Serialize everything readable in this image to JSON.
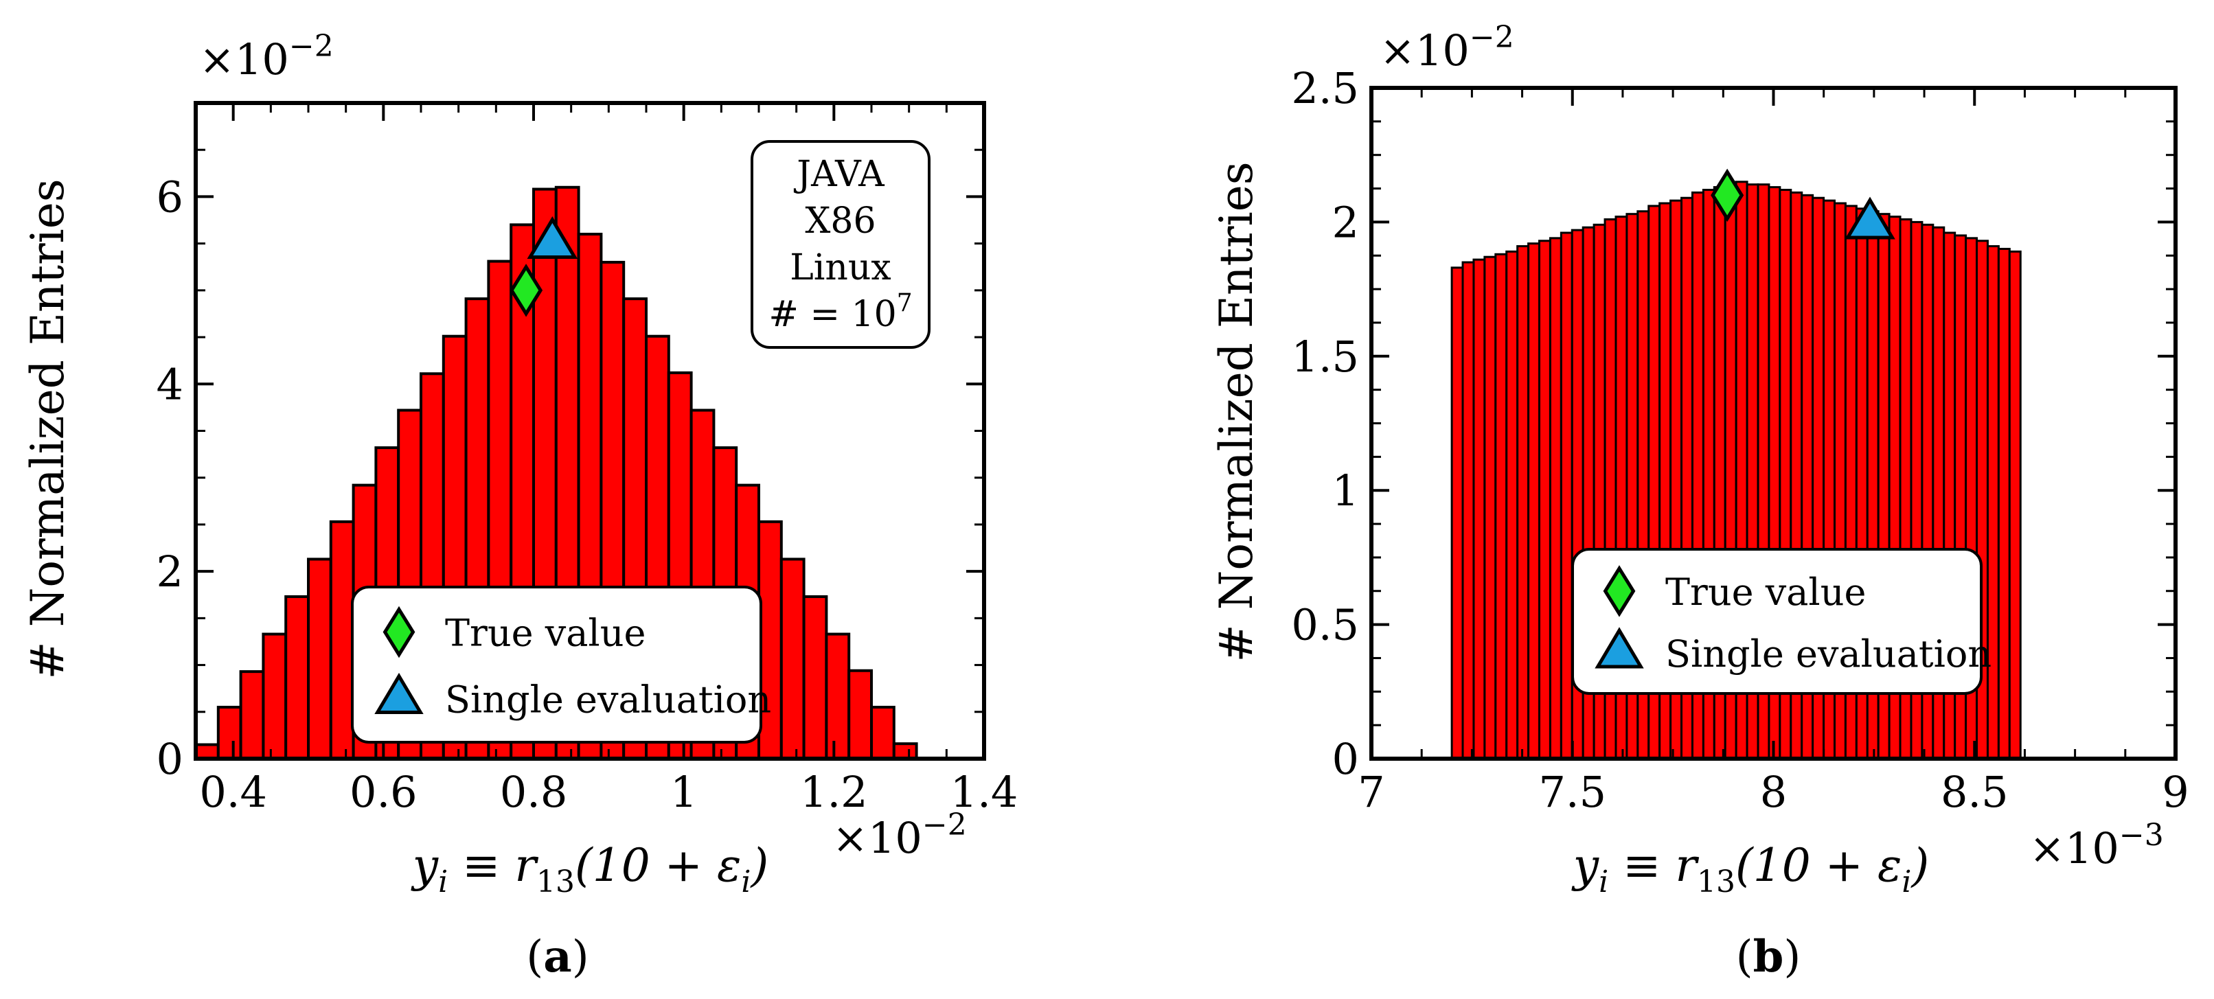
{
  "chart_data": [
    {
      "id": "a",
      "type": "bar",
      "panel_label_open": "(",
      "panel_label_letter": "a",
      "panel_label_close": ")",
      "ylabel": "# Normalized Entries",
      "xlabel": "y_i ≡ r_13(10 + ε_i)",
      "xlabel_parts": {
        "y": "y",
        "y_sub": "i",
        "mid": " ≡ r",
        "r_sub": "13",
        "open": "(10 + ε",
        "eps_sub": "i",
        "close": ")"
      },
      "y_multiplier": "×10",
      "y_multiplier_exp": "−2",
      "x_multiplier": "×10",
      "x_multiplier_exp": "−2",
      "xlim": [
        0.35,
        1.4
      ],
      "ylim": [
        0,
        7
      ],
      "xticks": [
        0.4,
        0.6,
        0.8,
        1.0,
        1.2,
        1.4
      ],
      "xtick_labels": [
        "0.4",
        "0.6",
        "0.8",
        "1",
        "1.2",
        "1.4"
      ],
      "yticks": [
        0,
        2,
        4,
        6
      ],
      "ytick_labels": [
        "0",
        "2",
        "4",
        "6"
      ],
      "bin_start": 0.35,
      "bin_width": 0.03,
      "values": [
        0.15,
        0.55,
        0.93,
        1.33,
        1.73,
        2.13,
        2.53,
        2.92,
        3.32,
        3.72,
        4.11,
        4.51,
        4.91,
        5.31,
        5.7,
        6.08,
        6.1,
        5.6,
        5.3,
        4.91,
        4.51,
        4.12,
        3.72,
        3.32,
        2.92,
        2.53,
        2.13,
        1.73,
        1.33,
        0.94,
        0.55,
        0.16
      ],
      "bar_color": "#ff0000",
      "markers": [
        {
          "label": "True value",
          "shape": "diamond",
          "color": "#22e822",
          "x": 0.79,
          "y": 5.0
        },
        {
          "label": "Single evaluation",
          "shape": "triangle",
          "color": "#1b9fe0",
          "x": 0.825,
          "y": 5.52
        }
      ],
      "legend": [
        "True value",
        "Single evaluation"
      ],
      "legend_position": "bottom-center",
      "annotation": [
        "JAVA",
        "X86",
        "Linux",
        "# = 10"
      ],
      "annotation_exp": "7",
      "annotation_position": "top-right"
    },
    {
      "id": "b",
      "type": "bar",
      "panel_label_open": "(",
      "panel_label_letter": "b",
      "panel_label_close": ")",
      "ylabel": "# Normalized Entries",
      "xlabel": "y_i ≡ r_13(10 + ε_i)",
      "xlabel_parts": {
        "y": "y",
        "y_sub": "i",
        "mid": " ≡ r",
        "r_sub": "13",
        "open": "(10 + ε",
        "eps_sub": "i",
        "close": ")"
      },
      "y_multiplier": "×10",
      "y_multiplier_exp": "−2",
      "x_multiplier": "×10",
      "x_multiplier_exp": "−3",
      "xlim": [
        7,
        9
      ],
      "ylim": [
        0,
        2.5
      ],
      "xticks": [
        7,
        7.5,
        8,
        8.5,
        9
      ],
      "xtick_labels": [
        "7",
        "7.5",
        "8",
        "8.5",
        "9"
      ],
      "yticks": [
        0,
        0.5,
        1,
        1.5,
        2,
        2.5
      ],
      "ytick_labels": [
        "0",
        "0.5",
        "1",
        "1.5",
        "2",
        "2.5"
      ],
      "bin_start": 7.2,
      "bin_width": 0.0272,
      "values": [
        1.83,
        1.85,
        1.86,
        1.87,
        1.88,
        1.89,
        1.91,
        1.92,
        1.93,
        1.94,
        1.96,
        1.97,
        1.98,
        1.99,
        2.01,
        2.02,
        2.03,
        2.04,
        2.06,
        2.07,
        2.08,
        2.09,
        2.11,
        2.12,
        2.13,
        2.14,
        2.15,
        2.14,
        2.14,
        2.13,
        2.12,
        2.11,
        2.1,
        2.09,
        2.08,
        2.07,
        2.06,
        2.05,
        2.04,
        2.03,
        2.02,
        2.01,
        2.0,
        1.99,
        1.98,
        1.96,
        1.95,
        1.94,
        1.93,
        1.91,
        1.9,
        1.89
      ],
      "bar_color": "#ff0000",
      "markers": [
        {
          "label": "True value",
          "shape": "diamond",
          "color": "#22e822",
          "x": 7.885,
          "y": 2.1
        },
        {
          "label": "Single evaluation",
          "shape": "triangle",
          "color": "#1b9fe0",
          "x": 8.24,
          "y": 2.0
        }
      ],
      "legend": [
        "True value",
        "Single evaluation"
      ],
      "legend_position": "bottom-center"
    }
  ]
}
